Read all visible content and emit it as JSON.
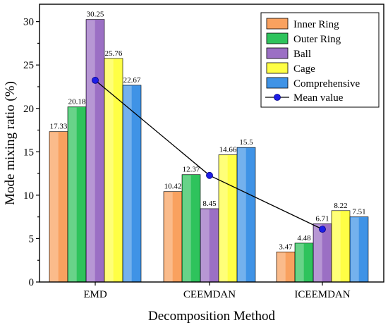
{
  "chart_data": {
    "type": "bar",
    "xlabel": "Decomposition Method",
    "ylabel": "Mode mixing ratio (%)",
    "categories": [
      "EMD",
      "CEEMDAN",
      "ICEEMDAN"
    ],
    "ylim": [
      0,
      32
    ],
    "yticks": [
      0,
      5,
      10,
      15,
      20,
      25,
      30
    ],
    "series": [
      {
        "name": "Inner Ring",
        "color": "#f9a15f",
        "values": [
          17.33,
          10.42,
          3.47
        ],
        "labels": [
          "17.33",
          "10.42",
          "3.47"
        ]
      },
      {
        "name": "Outer Ring",
        "color": "#2ec35c",
        "values": [
          20.18,
          12.37,
          4.48
        ],
        "labels": [
          "20.18",
          "12.37",
          "4.48"
        ]
      },
      {
        "name": "Ball",
        "color": "#9b6fc4",
        "values": [
          30.25,
          8.45,
          6.71
        ],
        "labels": [
          "30.25",
          "8.45",
          "6.71"
        ]
      },
      {
        "name": "Cage",
        "color": "#ffff45",
        "values": [
          25.76,
          14.66,
          8.22
        ],
        "labels": [
          "25.76",
          "14.66",
          "8.22"
        ]
      },
      {
        "name": "Comprehensive",
        "color": "#3f93e6",
        "values": [
          22.67,
          15.5,
          7.51
        ],
        "labels": [
          "22.67",
          "15.5",
          "7.51"
        ]
      }
    ],
    "mean_line": {
      "name": "Mean value",
      "color": "#1d1de6",
      "values": [
        23.24,
        12.28,
        6.08
      ]
    },
    "legend": "top-right",
    "grid": false
  }
}
